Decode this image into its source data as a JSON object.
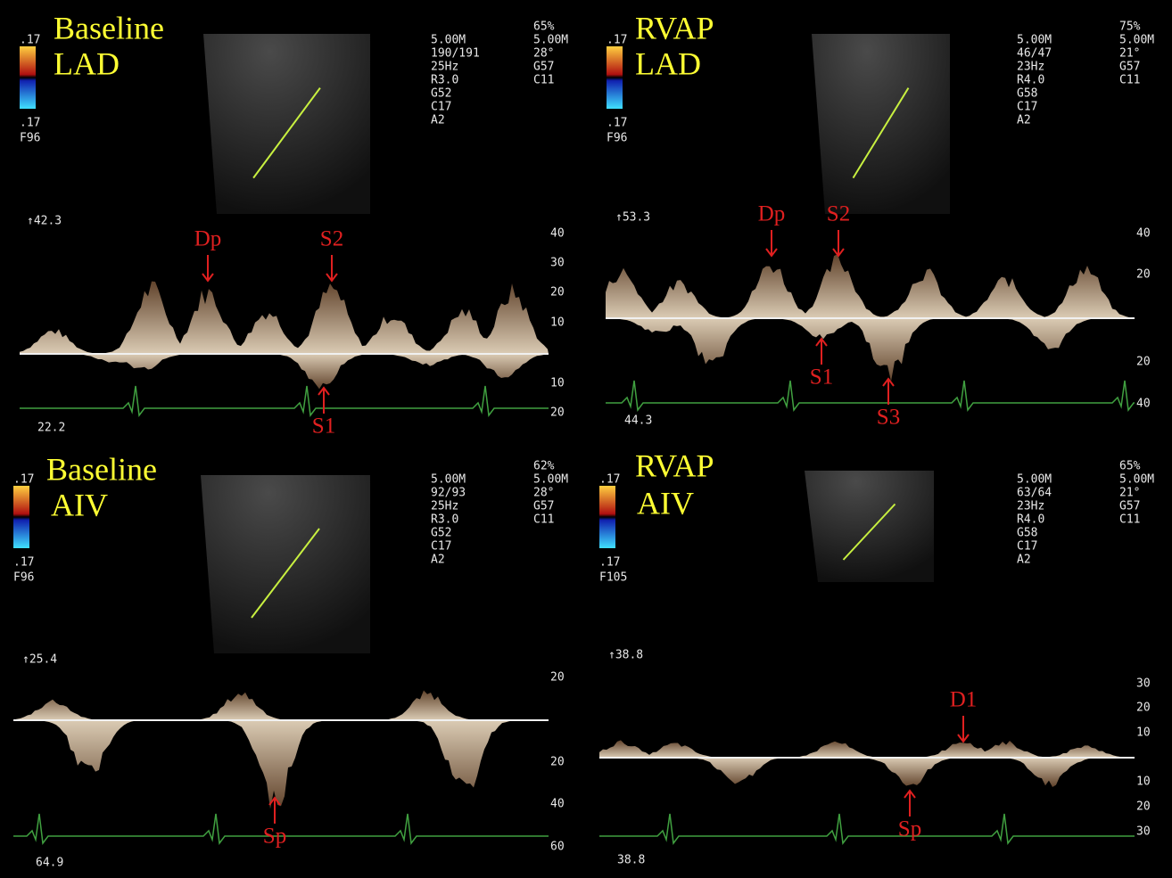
{
  "panels": [
    {
      "title": [
        "Baseline",
        "LAD"
      ],
      "scale": [
        ".17",
        ".17",
        "F96"
      ],
      "settings": [
        "5.00M",
        "190/191",
        "25Hz",
        "R3.0",
        "G52",
        "C17",
        "A2"
      ],
      "settings2": [
        "65%",
        "5.00M",
        "28°",
        "G57",
        "C11"
      ],
      "depth_top": "↑42.3",
      "depth_bottom": "22.2",
      "axis_labels": [
        "40",
        "30",
        "20",
        "10",
        "10",
        "20"
      ],
      "annotations": [
        "Dp",
        "S2",
        "S1"
      ]
    },
    {
      "title": [
        "RVAP",
        "LAD"
      ],
      "scale": [
        ".17",
        ".17",
        "F96"
      ],
      "settings": [
        "5.00M",
        "46/47",
        "23Hz",
        "R4.0",
        "G58",
        "C17",
        "A2"
      ],
      "settings2": [
        "75%",
        "5.00M",
        "21°",
        "G57",
        "C11"
      ],
      "depth_top": "↑53.3",
      "depth_bottom": "44.3",
      "axis_labels": [
        "40",
        "20",
        "20",
        "40"
      ],
      "annotations": [
        "Dp",
        "S2",
        "S1",
        "S3"
      ]
    },
    {
      "title": [
        "Baseline",
        "AIV"
      ],
      "scale": [
        ".17",
        ".17",
        "F96"
      ],
      "settings": [
        "5.00M",
        "92/93",
        "25Hz",
        "R3.0",
        "G52",
        "C17",
        "A2"
      ],
      "settings2": [
        "62%",
        "5.00M",
        "28°",
        "G57",
        "C11"
      ],
      "depth_top": "↑25.4",
      "depth_bottom": "64.9",
      "axis_labels": [
        "20",
        "20",
        "40",
        "60"
      ],
      "annotations": [
        "Sp"
      ]
    },
    {
      "title": [
        "RVAP",
        "AIV"
      ],
      "scale": [
        ".17",
        ".17",
        "F105"
      ],
      "settings": [
        "5.00M",
        "63/64",
        "23Hz",
        "R4.0",
        "G58",
        "C17",
        "A2"
      ],
      "settings2": [
        "65%",
        "5.00M",
        "21°",
        "G57",
        "C11"
      ],
      "depth_top": "↑38.8",
      "depth_bottom": "38.8",
      "axis_labels": [
        "30",
        "20",
        "10",
        "10",
        "20",
        "30"
      ],
      "annotations": [
        "D1",
        "Sp"
      ]
    }
  ]
}
